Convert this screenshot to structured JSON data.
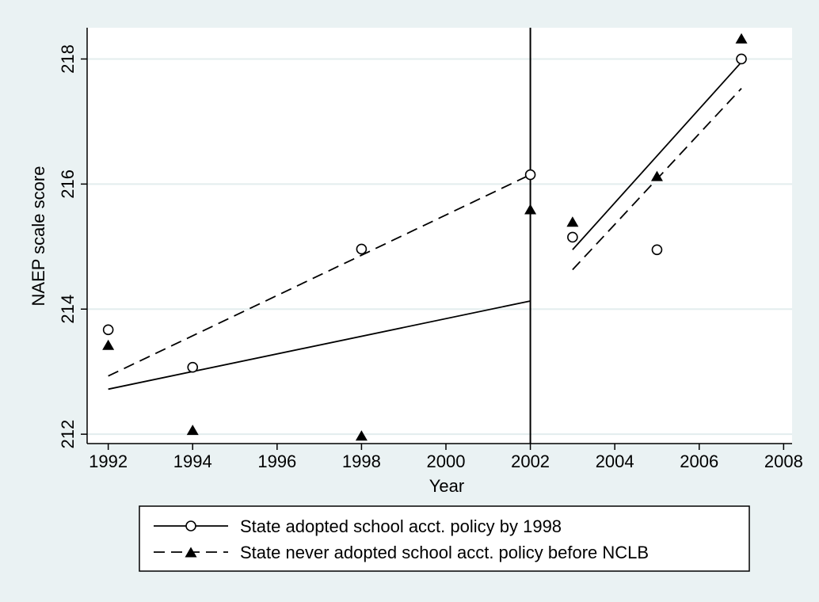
{
  "chart_data": {
    "type": "scatter",
    "title": "",
    "xlabel": "Year",
    "ylabel": "NAEP scale score",
    "xlim": [
      1991.5,
      2008.2
    ],
    "ylim": [
      211.85,
      218.5
    ],
    "xticks": [
      1992,
      1994,
      1996,
      1998,
      2000,
      2002,
      2004,
      2006,
      2008
    ],
    "yticks": [
      212,
      214,
      216,
      218
    ],
    "grid": "horizontal",
    "background": "#eaf2f3",
    "plot_background": "#ffffff",
    "grid_color": "#e3edee",
    "vertical_reference_line": 2002,
    "legend_position": "bottom",
    "series": [
      {
        "name": "State adopted school acct. policy by 1998",
        "marker": "hollow-circle",
        "line_style": "solid",
        "points": [
          {
            "x": 1992,
            "y": 213.67
          },
          {
            "x": 1994,
            "y": 213.07
          },
          {
            "x": 1998,
            "y": 214.96
          },
          {
            "x": 2002,
            "y": 216.15
          },
          {
            "x": 2003,
            "y": 215.15
          },
          {
            "x": 2005,
            "y": 214.95
          },
          {
            "x": 2007,
            "y": 218.0
          }
        ],
        "fit_segments": [
          {
            "x": [
              1992,
              2002
            ],
            "y": [
              212.72,
              214.13
            ]
          },
          {
            "x": [
              2003,
              2007
            ],
            "y": [
              214.95,
              217.95
            ]
          }
        ]
      },
      {
        "name": "State never adopted school acct. policy before NCLB",
        "marker": "filled-triangle",
        "line_style": "dashed",
        "points": [
          {
            "x": 1992,
            "y": 213.43
          },
          {
            "x": 1994,
            "y": 212.07
          },
          {
            "x": 1998,
            "y": 211.98
          },
          {
            "x": 2002,
            "y": 215.6
          },
          {
            "x": 2003,
            "y": 215.4
          },
          {
            "x": 2005,
            "y": 216.13
          },
          {
            "x": 2007,
            "y": 218.33
          }
        ],
        "fit_segments": [
          {
            "x": [
              1992,
              2002
            ],
            "y": [
              212.93,
              216.15
            ]
          },
          {
            "x": [
              2003,
              2007
            ],
            "y": [
              214.63,
              217.53
            ]
          }
        ]
      }
    ]
  }
}
